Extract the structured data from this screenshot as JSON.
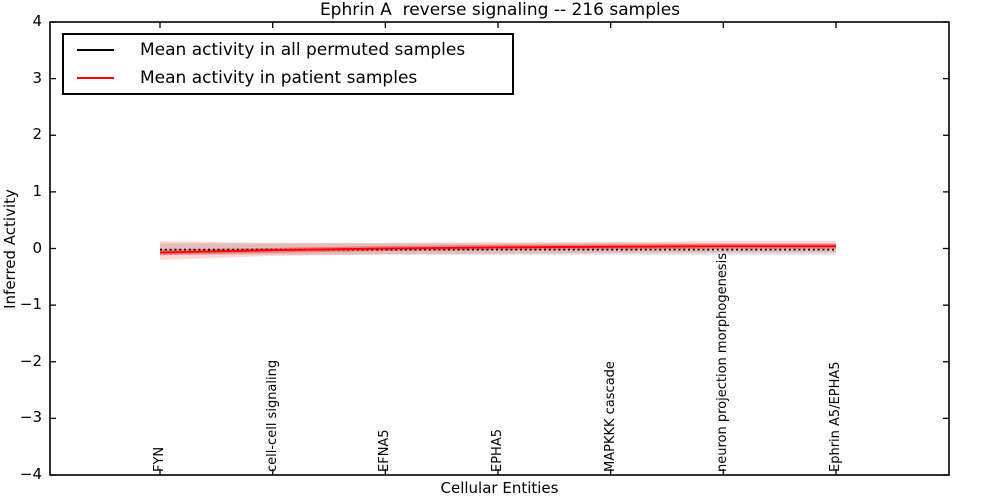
{
  "figure": {
    "title": "Ephrin A  reverse signaling -- 216 samples",
    "xlabel": "Cellular Entities",
    "ylabel": "Inferred Activity"
  },
  "legend": {
    "position": "upper left",
    "items": [
      {
        "label": "Mean activity in all permuted samples",
        "color": "#000000"
      },
      {
        "label": "Mean activity in patient samples",
        "color": "#ff0000"
      }
    ]
  },
  "chart_data": {
    "type": "line",
    "title": "Ephrin A  reverse signaling -- 216 samples",
    "xlabel": "Cellular Entities",
    "ylabel": "Inferred Activity",
    "ylim": [
      -4,
      4
    ],
    "yticks": [
      4,
      3,
      2,
      1,
      0,
      -1,
      -2,
      -3,
      -4
    ],
    "ytick_labels": [
      "4",
      "3",
      "2",
      "1",
      "0",
      "−1",
      "−2",
      "−3",
      "−4"
    ],
    "grid": false,
    "legend_position": "upper left",
    "categories": [
      "FYN",
      "cell-cell signaling",
      "EFNA5",
      "EPHA5",
      "MAPKKK cascade",
      "neuron projection morphogenesis",
      "Ephrin A5/EPHA5"
    ],
    "series": [
      {
        "name": "Mean activity in all permuted samples",
        "color": "#000000",
        "line_style": "dotted",
        "values": [
          -0.02,
          -0.02,
          -0.02,
          -0.02,
          -0.02,
          -0.02,
          -0.02
        ]
      },
      {
        "name": "Mean activity in patient samples",
        "color": "#ff0000",
        "line_style": "solid",
        "values": [
          -0.07,
          -0.03,
          0.0,
          0.02,
          0.03,
          0.04,
          0.04
        ]
      }
    ],
    "bands": [
      {
        "name": "permuted samples range",
        "color": "#999999",
        "opacity": 0.3,
        "upper": [
          0.09,
          0.09,
          0.09,
          0.09,
          0.09,
          0.09,
          0.09
        ],
        "lower": [
          -0.11,
          -0.11,
          -0.11,
          -0.11,
          -0.11,
          -0.11,
          -0.11
        ]
      },
      {
        "name": "patient samples outer range",
        "color": "#ff0000",
        "opacity": 0.16,
        "upper": [
          0.13,
          0.1,
          0.1,
          0.11,
          0.12,
          0.13,
          0.13
        ],
        "lower": [
          -0.2,
          -0.13,
          -0.1,
          -0.09,
          -0.08,
          -0.07,
          -0.07
        ]
      },
      {
        "name": "patient samples inner range",
        "color": "#ff0000",
        "opacity": 0.35,
        "upper": [
          -0.02,
          0.01,
          0.045,
          0.065,
          0.075,
          0.085,
          0.085
        ],
        "lower": [
          -0.12,
          -0.075,
          -0.045,
          -0.025,
          -0.015,
          -0.005,
          -0.005
        ]
      }
    ]
  }
}
